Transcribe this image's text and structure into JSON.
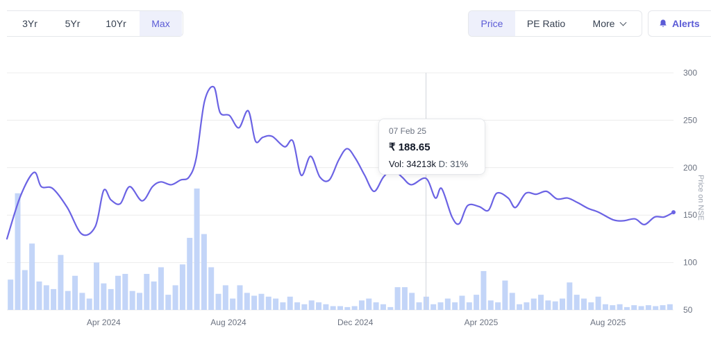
{
  "range_buttons": [
    {
      "label": "3Yr",
      "active": false
    },
    {
      "label": "5Yr",
      "active": false
    },
    {
      "label": "10Yr",
      "active": false
    },
    {
      "label": "Max",
      "active": true
    }
  ],
  "metric_tabs": [
    {
      "label": "Price",
      "active": true
    },
    {
      "label": "PE Ratio",
      "active": false
    },
    {
      "label": "More",
      "active": false
    }
  ],
  "alerts": {
    "label": "Alerts",
    "icon": "bell-icon"
  },
  "tooltip": {
    "date": "07 Feb 25",
    "price": "₹ 188.65",
    "vol_label": "Vol: 34213k",
    "delivery_label": "D: 31%"
  },
  "colors": {
    "line": "#6b63e4",
    "bars": "#c3d5f8",
    "accent": "#5b5bd6",
    "grid": "#ececec"
  },
  "chart_data": {
    "type": "line",
    "ylim": [
      50,
      300
    ],
    "y_ticks": [
      "300",
      "250",
      "200",
      "150",
      "100",
      "50"
    ],
    "ylabel": "Price on NSE",
    "x_ticks": [
      "Apr 2024",
      "Aug 2024",
      "Dec 2024",
      "Apr 2025",
      "Aug 2025"
    ],
    "grid": true,
    "crosshair_date": "07 Feb 25",
    "series": [
      {
        "type": "line",
        "x": [
          "2024-01-01",
          "2024-01-14",
          "2024-01-27",
          "2024-02-03",
          "2024-02-14",
          "2024-02-28",
          "2024-03-13",
          "2024-03-26",
          "2024-04-03",
          "2024-04-10",
          "2024-04-19",
          "2024-04-28",
          "2024-05-10",
          "2024-05-20",
          "2024-05-28",
          "2024-06-07",
          "2024-06-16",
          "2024-06-24",
          "2024-07-01",
          "2024-07-09",
          "2024-07-18",
          "2024-07-24",
          "2024-08-02",
          "2024-08-11",
          "2024-08-20",
          "2024-08-27",
          "2024-09-03",
          "2024-09-12",
          "2024-09-24",
          "2024-10-02",
          "2024-10-10",
          "2024-10-19",
          "2024-10-28",
          "2024-11-06",
          "2024-11-15",
          "2024-11-23",
          "2024-12-01",
          "2024-12-10",
          "2024-12-19",
          "2024-12-28",
          "2025-01-06",
          "2025-01-15",
          "2025-01-24",
          "2025-02-07",
          "2025-02-16",
          "2025-02-22",
          "2025-03-04",
          "2025-03-11",
          "2025-03-19",
          "2025-03-30",
          "2025-04-08",
          "2025-04-16",
          "2025-04-27",
          "2025-05-04",
          "2025-05-14",
          "2025-05-24",
          "2025-06-03",
          "2025-06-13",
          "2025-06-23",
          "2025-07-03",
          "2025-07-13",
          "2025-07-23",
          "2025-08-06",
          "2025-08-16",
          "2025-08-27",
          "2025-09-05",
          "2025-09-15",
          "2025-09-24",
          "2025-10-03"
        ],
        "values": [
          125,
          170,
          195,
          180,
          178,
          158,
          130,
          138,
          176,
          166,
          162,
          180,
          165,
          180,
          185,
          182,
          187,
          190,
          210,
          270,
          285,
          258,
          255,
          242,
          260,
          228,
          232,
          233,
          222,
          228,
          192,
          212,
          190,
          187,
          208,
          220,
          210,
          192,
          175,
          190,
          198,
          190,
          182,
          188.65,
          168,
          178,
          148,
          141,
          160,
          159,
          155,
          173,
          168,
          158,
          173,
          172,
          175,
          167,
          168,
          163,
          157,
          153,
          145,
          144,
          146,
          140,
          148,
          148,
          153
        ]
      },
      {
        "type": "bar",
        "name": "Volume",
        "values": [
          82,
          173,
          92,
          120,
          80,
          76,
          72,
          108,
          70,
          86,
          68,
          62,
          100,
          78,
          72,
          86,
          88,
          70,
          68,
          88,
          80,
          95,
          66,
          76,
          98,
          126,
          178,
          130,
          95,
          67,
          76,
          62,
          76,
          68,
          65,
          67,
          64,
          62,
          58,
          64,
          58,
          56,
          60,
          58,
          56,
          54,
          54,
          53,
          54,
          60,
          62,
          58,
          56,
          53,
          74,
          74,
          68,
          58,
          64,
          56,
          58,
          62,
          58,
          65,
          58,
          66,
          91,
          60,
          58,
          81,
          68,
          56,
          58,
          62,
          66,
          60,
          59,
          62,
          79,
          66,
          62,
          58,
          64,
          56,
          55,
          56,
          53,
          55,
          54,
          55,
          54,
          55,
          56
        ]
      }
    ]
  }
}
